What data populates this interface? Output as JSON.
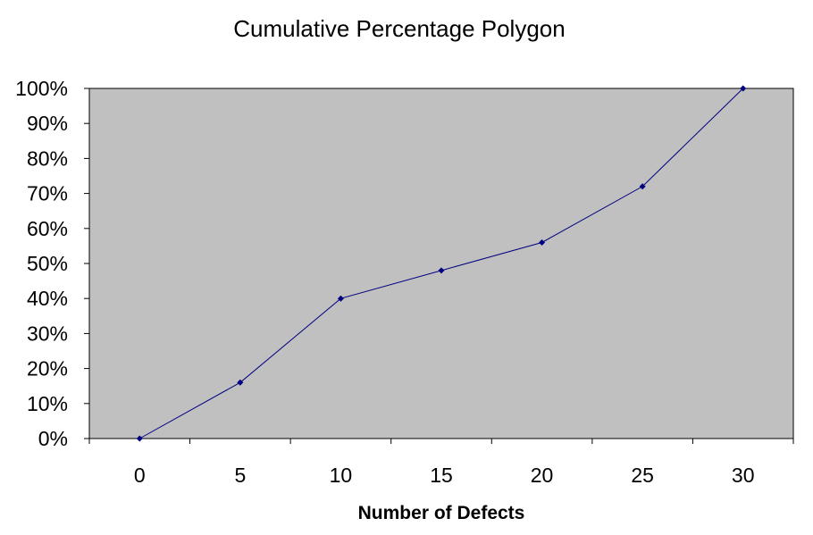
{
  "chart_data": {
    "type": "line",
    "title": "Cumulative Percentage Polygon",
    "xlabel": "Number of Defects",
    "ylabel": "",
    "categories": [
      "0",
      "5",
      "10",
      "15",
      "20",
      "25",
      "30"
    ],
    "series": [
      {
        "values": [
          0,
          16,
          40,
          48,
          56,
          72,
          100
        ]
      }
    ],
    "ylim": [
      0,
      100
    ],
    "y_ticks": [
      "0%",
      "10%",
      "20%",
      "30%",
      "40%",
      "50%",
      "60%",
      "70%",
      "80%",
      "90%",
      "100%"
    ],
    "grid": false,
    "legend": "none",
    "colors": {
      "plot_area": "#c0c0c0",
      "line": "#000080",
      "marker": "#000080",
      "axis": "#000000"
    }
  }
}
